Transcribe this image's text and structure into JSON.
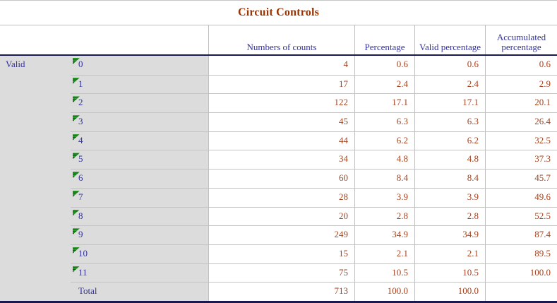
{
  "title": "Circuit Controls",
  "stub_label": "Valid",
  "columns": [
    "Numbers of counts",
    "Percentage",
    "Valid percentage",
    "Accumulated percentage"
  ],
  "rows": [
    {
      "label": "0",
      "marker": true,
      "counts": "4",
      "pct": "0.6",
      "valid_pct": "0.6",
      "accum_pct": "0.6"
    },
    {
      "label": "1",
      "marker": true,
      "counts": "17",
      "pct": "2.4",
      "valid_pct": "2.4",
      "accum_pct": "2.9"
    },
    {
      "label": "2",
      "marker": true,
      "counts": "122",
      "pct": "17.1",
      "valid_pct": "17.1",
      "accum_pct": "20.1"
    },
    {
      "label": "3",
      "marker": true,
      "counts": "45",
      "pct": "6.3",
      "valid_pct": "6.3",
      "accum_pct": "26.4"
    },
    {
      "label": "4",
      "marker": true,
      "counts": "44",
      "pct": "6.2",
      "valid_pct": "6.2",
      "accum_pct": "32.5"
    },
    {
      "label": "5",
      "marker": true,
      "counts": "34",
      "pct": "4.8",
      "valid_pct": "4.8",
      "accum_pct": "37.3"
    },
    {
      "label": "6",
      "marker": true,
      "counts": "60",
      "pct": "8.4",
      "valid_pct": "8.4",
      "accum_pct": "45.7"
    },
    {
      "label": "7",
      "marker": true,
      "counts": "28",
      "pct": "3.9",
      "valid_pct": "3.9",
      "accum_pct": "49.6"
    },
    {
      "label": "8",
      "marker": true,
      "counts": "20",
      "pct": "2.8",
      "valid_pct": "2.8",
      "accum_pct": "52.5"
    },
    {
      "label": "9",
      "marker": true,
      "counts": "249",
      "pct": "34.9",
      "valid_pct": "34.9",
      "accum_pct": "87.4"
    },
    {
      "label": "10",
      "marker": true,
      "counts": "15",
      "pct": "2.1",
      "valid_pct": "2.1",
      "accum_pct": "89.5"
    },
    {
      "label": "11",
      "marker": true,
      "counts": "75",
      "pct": "10.5",
      "valid_pct": "10.5",
      "accum_pct": "100.0"
    },
    {
      "label": "Total",
      "marker": false,
      "counts": "713",
      "pct": "100.0",
      "valid_pct": "100.0",
      "accum_pct": ""
    }
  ],
  "colors": {
    "title_text": "#993300",
    "header_text": "#333399",
    "data_text": "#a3431f",
    "stub_background": "#dcdcdc",
    "heavy_border": "#1a1a52",
    "light_border": "#c4c4c4",
    "marker_green_light": "#34a034",
    "marker_green_dark": "#056105"
  },
  "chart_data": {
    "type": "table",
    "title": "Circuit Controls",
    "stub_group": "Valid",
    "columns": [
      "Numbers of counts",
      "Percentage",
      "Valid percentage",
      "Accumulated percentage"
    ],
    "categories": [
      "0",
      "1",
      "2",
      "3",
      "4",
      "5",
      "6",
      "7",
      "8",
      "9",
      "10",
      "11",
      "Total"
    ],
    "series": [
      {
        "name": "Numbers of counts",
        "values": [
          4,
          17,
          122,
          45,
          44,
          34,
          60,
          28,
          20,
          249,
          15,
          75,
          713
        ]
      },
      {
        "name": "Percentage",
        "values": [
          0.6,
          2.4,
          17.1,
          6.3,
          6.2,
          4.8,
          8.4,
          3.9,
          2.8,
          34.9,
          2.1,
          10.5,
          100.0
        ]
      },
      {
        "name": "Valid percentage",
        "values": [
          0.6,
          2.4,
          17.1,
          6.3,
          6.2,
          4.8,
          8.4,
          3.9,
          2.8,
          34.9,
          2.1,
          10.5,
          100.0
        ]
      },
      {
        "name": "Accumulated percentage",
        "values": [
          0.6,
          2.9,
          20.1,
          26.4,
          32.5,
          37.3,
          45.7,
          49.6,
          52.5,
          87.4,
          89.5,
          100.0,
          null
        ]
      }
    ]
  }
}
